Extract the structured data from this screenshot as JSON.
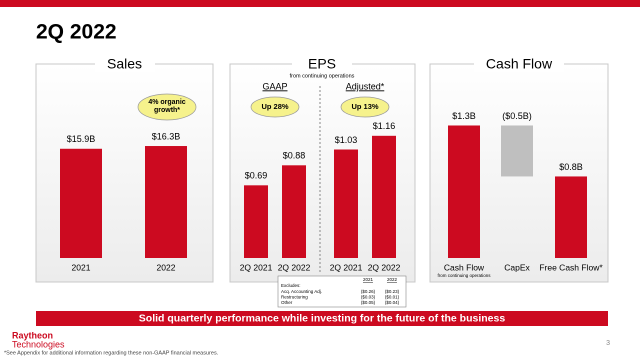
{
  "title": "2Q 2022",
  "chart_data": [
    {
      "type": "bar",
      "title": "Sales",
      "categories": [
        "2021",
        "2022"
      ],
      "values": [
        15.9,
        16.3
      ],
      "value_labels": [
        "$15.9B",
        "$16.3B"
      ],
      "color": "#cc0a20",
      "ylim": [
        0,
        23
      ],
      "annotations": [
        "4% organic growth*"
      ]
    },
    {
      "type": "bar",
      "title": "EPS",
      "subtitle": "from continuing operations",
      "categories": [
        "2Q 2021",
        "2Q 2022",
        "2Q 2021",
        "2Q 2022"
      ],
      "values": [
        0.69,
        0.88,
        1.03,
        1.16
      ],
      "value_labels": [
        "$0.69",
        "$0.88",
        "$1.03",
        "$1.16"
      ],
      "color": "#cc0a20",
      "ylim": [
        0,
        1.5
      ],
      "groups": [
        {
          "label": "GAAP",
          "annotation": "Up 28%"
        },
        {
          "label": "Adjusted*",
          "annotation": "Up 13%"
        }
      ]
    },
    {
      "type": "waterfall",
      "title": "Cash Flow",
      "categories": [
        "Cash Flow",
        "CapEx",
        "Free Cash Flow*"
      ],
      "values": [
        1.3,
        -0.5,
        0.8
      ],
      "value_labels": [
        "$1.3B",
        "($0.5B)",
        "$0.8B"
      ],
      "measure": [
        "absolute",
        "relative",
        "total"
      ],
      "colors": [
        "#cc0a20",
        "#bfbfbf",
        "#cc0a20"
      ],
      "ylim": [
        0,
        1.55
      ],
      "annotations": [
        "from continuing operations"
      ]
    }
  ],
  "exclusions": {
    "columns": [
      "2021",
      "2022"
    ],
    "heading": "Excludes:",
    "rows": [
      [
        "Acq. Accounting Adj.",
        "($0.26)",
        "($0.23)"
      ],
      [
        "Restructuring",
        "($0.03)",
        "($0.01)"
      ],
      [
        "Other",
        "($0.05)",
        "($0.04)"
      ]
    ]
  },
  "banner": "Solid quarterly performance while investing for the future of the business",
  "logo": [
    "Raytheon",
    "Technologies"
  ],
  "footnote": "*See Appendix for additional information regarding these non-GAAP financial measures.",
  "page_number": "3"
}
